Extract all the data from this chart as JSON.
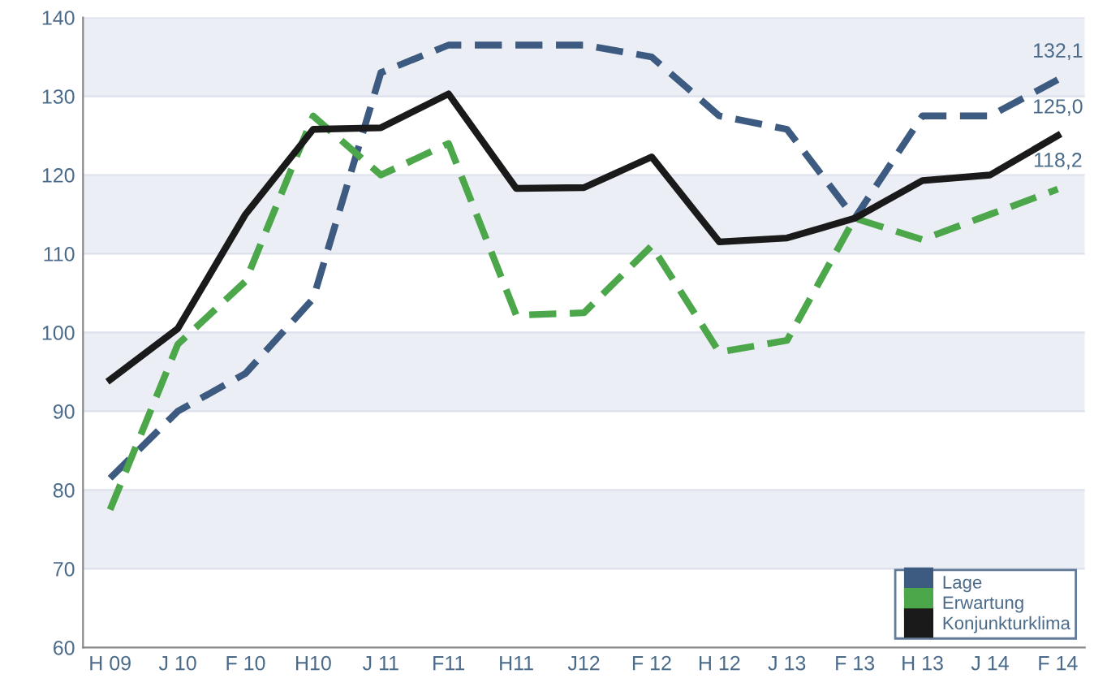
{
  "chart_data": {
    "type": "line",
    "categories": [
      "H 09",
      "J 10",
      "F 10",
      "H10",
      "J 11",
      "F11",
      "H11",
      "J12",
      "F 12",
      "H 12",
      "J 13",
      "F 13",
      "H 13",
      "J 14",
      "F 14"
    ],
    "series": [
      {
        "name": "Lage",
        "color": "#3d5a80",
        "line_style": "dashed",
        "values": [
          81.5,
          90,
          94.8,
          104.3,
          133,
          136.5,
          136.5,
          136.5,
          135,
          127.5,
          125.8,
          114.5,
          127.5,
          127.5,
          132.1
        ],
        "value_labels": [
          null,
          null,
          null,
          null,
          null,
          null,
          null,
          null,
          null,
          null,
          null,
          null,
          null,
          null,
          "132,1"
        ]
      },
      {
        "name": "Erwartung",
        "color": "#4ca64a",
        "line_style": "dashed",
        "values": [
          77.5,
          98.5,
          106.5,
          127.5,
          120,
          124,
          102.2,
          102.5,
          111,
          97.5,
          99,
          114.5,
          111.8,
          115,
          118.2
        ],
        "value_labels": [
          null,
          null,
          null,
          null,
          null,
          null,
          null,
          null,
          null,
          null,
          null,
          null,
          null,
          null,
          "118,2"
        ]
      },
      {
        "name": "Konjunkturklima",
        "color": "#1a1a1a",
        "line_style": "solid",
        "values": [
          94,
          100.5,
          115,
          125.8,
          126,
          130.3,
          118.3,
          118.4,
          122.3,
          111.5,
          112,
          114.5,
          119.3,
          120,
          125.0
        ],
        "value_labels": [
          null,
          null,
          null,
          null,
          null,
          null,
          null,
          null,
          null,
          null,
          null,
          null,
          null,
          null,
          "125,0"
        ]
      }
    ],
    "ylim": [
      60,
      140
    ],
    "yticks": [
      60,
      70,
      80,
      90,
      100,
      110,
      120,
      130,
      140
    ],
    "grid": "y",
    "legend": "bottom right",
    "marker": "none"
  }
}
